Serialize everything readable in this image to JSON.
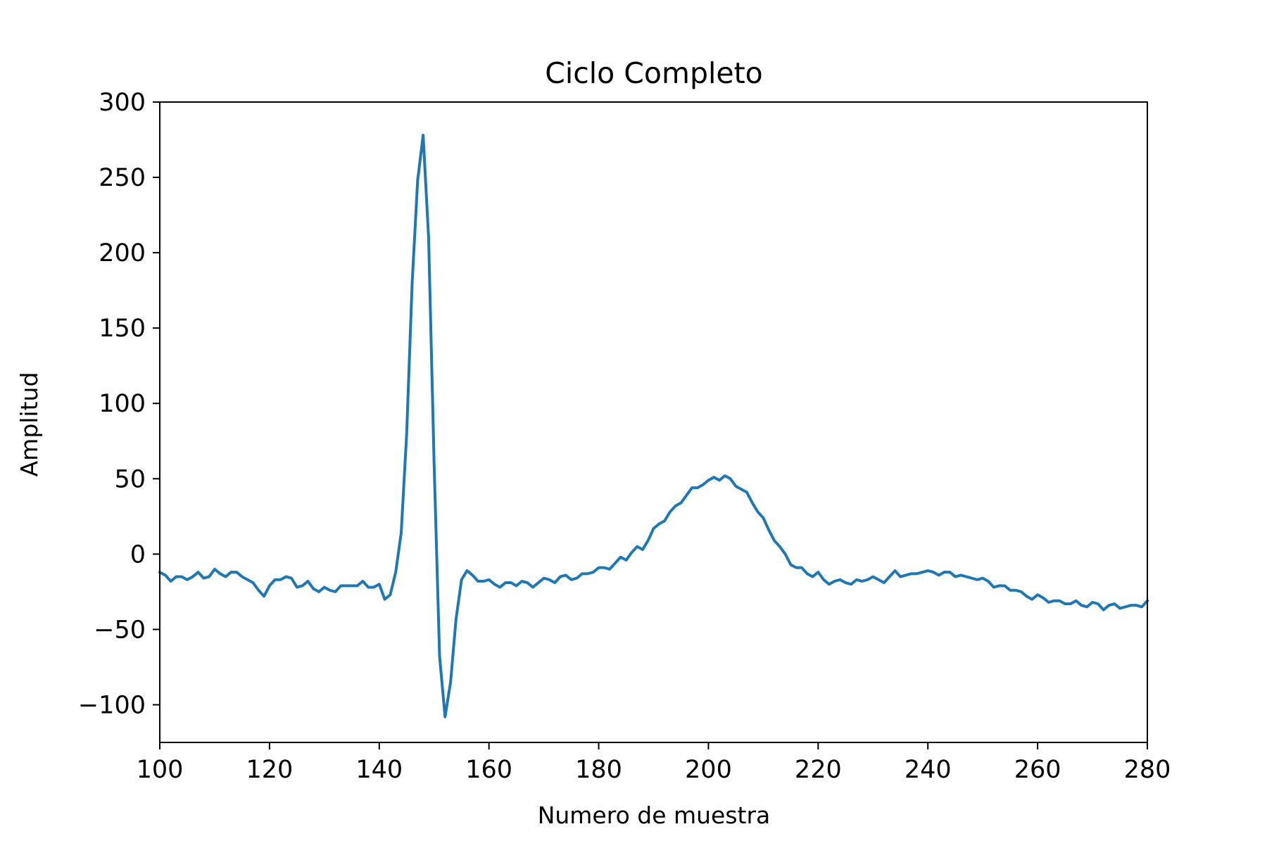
{
  "chart_data": {
    "type": "line",
    "title": "Ciclo Completo",
    "xlabel": "Numero de muestra",
    "ylabel": "Amplitud",
    "xlim": [
      100,
      280
    ],
    "ylim": [
      -125,
      300
    ],
    "xticks": [
      100,
      120,
      140,
      160,
      180,
      200,
      220,
      240,
      260,
      280
    ],
    "xtick_labels": [
      "100",
      "120",
      "140",
      "160",
      "180",
      "200",
      "220",
      "240",
      "260",
      "280"
    ],
    "yticks": [
      -100,
      -50,
      0,
      50,
      100,
      150,
      200,
      250,
      300
    ],
    "ytick_labels": [
      "−100",
      "−50",
      "0",
      "50",
      "100",
      "150",
      "200",
      "250",
      "300"
    ],
    "grid": false,
    "series": [
      {
        "color": "#1f77b4",
        "x": [
          100,
          101,
          102,
          103,
          104,
          105,
          106,
          107,
          108,
          109,
          110,
          111,
          112,
          113,
          114,
          115,
          116,
          117,
          118,
          119,
          120,
          121,
          122,
          123,
          124,
          125,
          126,
          127,
          128,
          129,
          130,
          131,
          132,
          133,
          134,
          135,
          136,
          137,
          138,
          139,
          140,
          141,
          142,
          143,
          144,
          145,
          146,
          147,
          148,
          149,
          150,
          151,
          152,
          153,
          154,
          155,
          156,
          157,
          158,
          159,
          160,
          161,
          162,
          163,
          164,
          165,
          166,
          167,
          168,
          169,
          170,
          171,
          172,
          173,
          174,
          175,
          176,
          177,
          178,
          179,
          180,
          181,
          182,
          183,
          184,
          185,
          186,
          187,
          188,
          189,
          190,
          191,
          192,
          193,
          194,
          195,
          196,
          197,
          198,
          199,
          200,
          201,
          202,
          203,
          204,
          205,
          206,
          207,
          208,
          209,
          210,
          211,
          212,
          213,
          214,
          215,
          216,
          217,
          218,
          219,
          220,
          221,
          222,
          223,
          224,
          225,
          226,
          227,
          228,
          229,
          230,
          231,
          232,
          233,
          234,
          235,
          236,
          237,
          238,
          239,
          240,
          241,
          242,
          243,
          244,
          245,
          246,
          247,
          248,
          249,
          250,
          251,
          252,
          253,
          254,
          255,
          256,
          257,
          258,
          259,
          260,
          261,
          262,
          263,
          264,
          265,
          266,
          267,
          268,
          269,
          270,
          271,
          272,
          273,
          274,
          275,
          276,
          277,
          278,
          279,
          280
        ],
        "y": [
          -12,
          -14,
          -18,
          -15,
          -15,
          -17,
          -15,
          -12,
          -16,
          -15,
          -10,
          -13,
          -15,
          -12,
          -12,
          -15,
          -17,
          -19,
          -24,
          -28,
          -21,
          -17,
          -17,
          -15,
          -16,
          -22,
          -21,
          -18,
          -23,
          -25,
          -22,
          -24,
          -25,
          -21,
          -21,
          -21,
          -21,
          -18,
          -22,
          -22,
          -20,
          -30,
          -27,
          -12,
          14,
          80,
          180,
          248,
          278,
          210,
          60,
          -68,
          -108,
          -85,
          -43,
          -17,
          -11,
          -14,
          -18,
          -18,
          -17,
          -20,
          -22,
          -19,
          -19,
          -21,
          -18,
          -19,
          -22,
          -19,
          -16,
          -17,
          -19,
          -15,
          -14,
          -17,
          -16,
          -13,
          -13,
          -12,
          -9,
          -9,
          -10,
          -6,
          -2,
          -4,
          1,
          5,
          3,
          9,
          17,
          20,
          22,
          28,
          32,
          34,
          39,
          44,
          44,
          46,
          49,
          51,
          49,
          52,
          50,
          45,
          43,
          41,
          34,
          28,
          24,
          16,
          9,
          5,
          0,
          -7,
          -9,
          -9,
          -13,
          -15,
          -12,
          -17,
          -20,
          -18,
          -17,
          -19,
          -20,
          -17,
          -18,
          -17,
          -15,
          -17,
          -19,
          -15,
          -11,
          -15,
          -14,
          -13,
          -13,
          -12,
          -11,
          -12,
          -14,
          -12,
          -12,
          -15,
          -14,
          -15,
          -16,
          -17,
          -16,
          -18,
          -22,
          -21,
          -21,
          -24,
          -24,
          -25,
          -28,
          -30,
          -27,
          -29,
          -32,
          -31,
          -31,
          -33,
          -33,
          -31,
          -34,
          -35,
          -32,
          -33,
          -37,
          -34,
          -33,
          -36,
          -35,
          -34,
          -34,
          -35,
          -31
        ]
      }
    ]
  }
}
